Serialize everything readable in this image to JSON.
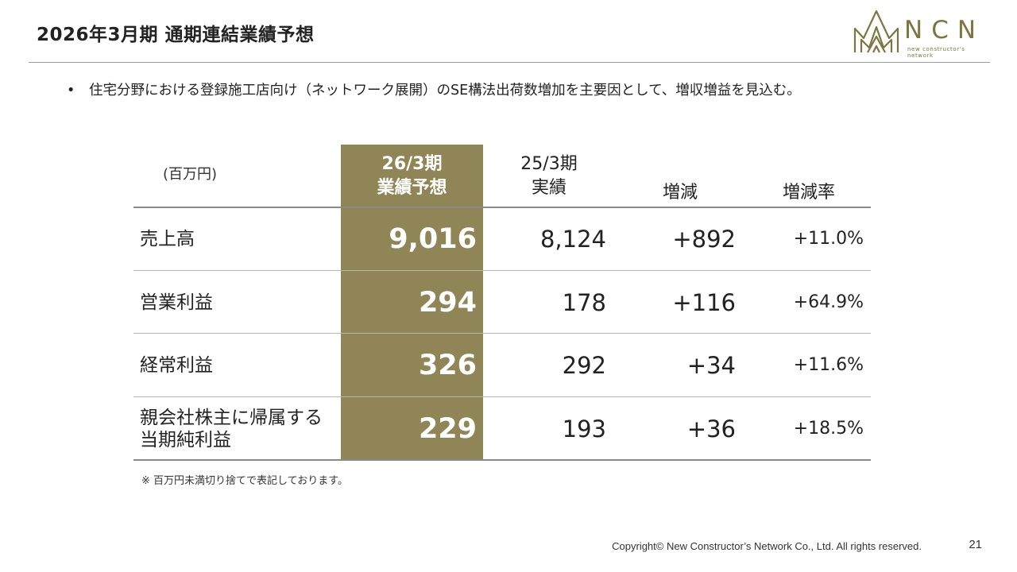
{
  "header": {
    "title": "2026年3月期 通期連結業績予想",
    "logo": {
      "wordmark": "NCN",
      "tagline": "new constructor's network",
      "color": "#7f7540"
    }
  },
  "bullet": "住宅分野における登録施工店向け（ネットワーク展開）のSE構法出荷数増加を主要因として、増収増益を見込む。",
  "table": {
    "unit": "(百万円)",
    "columns": {
      "forecast": [
        "26/3期",
        "業績予想"
      ],
      "actual": [
        "25/3期",
        "実績"
      ],
      "change": "増減",
      "rate": "増減率"
    },
    "highlight_color": "#8f8556",
    "rows": [
      {
        "label": [
          "売上高"
        ],
        "forecast": "9,016",
        "actual": "8,124",
        "change": "+892",
        "rate": "+11.0%"
      },
      {
        "label": [
          "営業利益"
        ],
        "forecast": "294",
        "actual": "178",
        "change": "+116",
        "rate": "+64.9%"
      },
      {
        "label": [
          "経常利益"
        ],
        "forecast": "326",
        "actual": "292",
        "change": "+34",
        "rate": "+11.6%"
      },
      {
        "label": [
          "親会社株主に帰属する",
          "当期純利益"
        ],
        "forecast": "229",
        "actual": "193",
        "change": "+36",
        "rate": "+18.5%"
      }
    ]
  },
  "note": "※ 百万円未満切り捨てで表記しております。",
  "footer": {
    "copyright": "Copyright© New Constructor’s Network Co., Ltd. All rights reserved.",
    "page": "21"
  }
}
